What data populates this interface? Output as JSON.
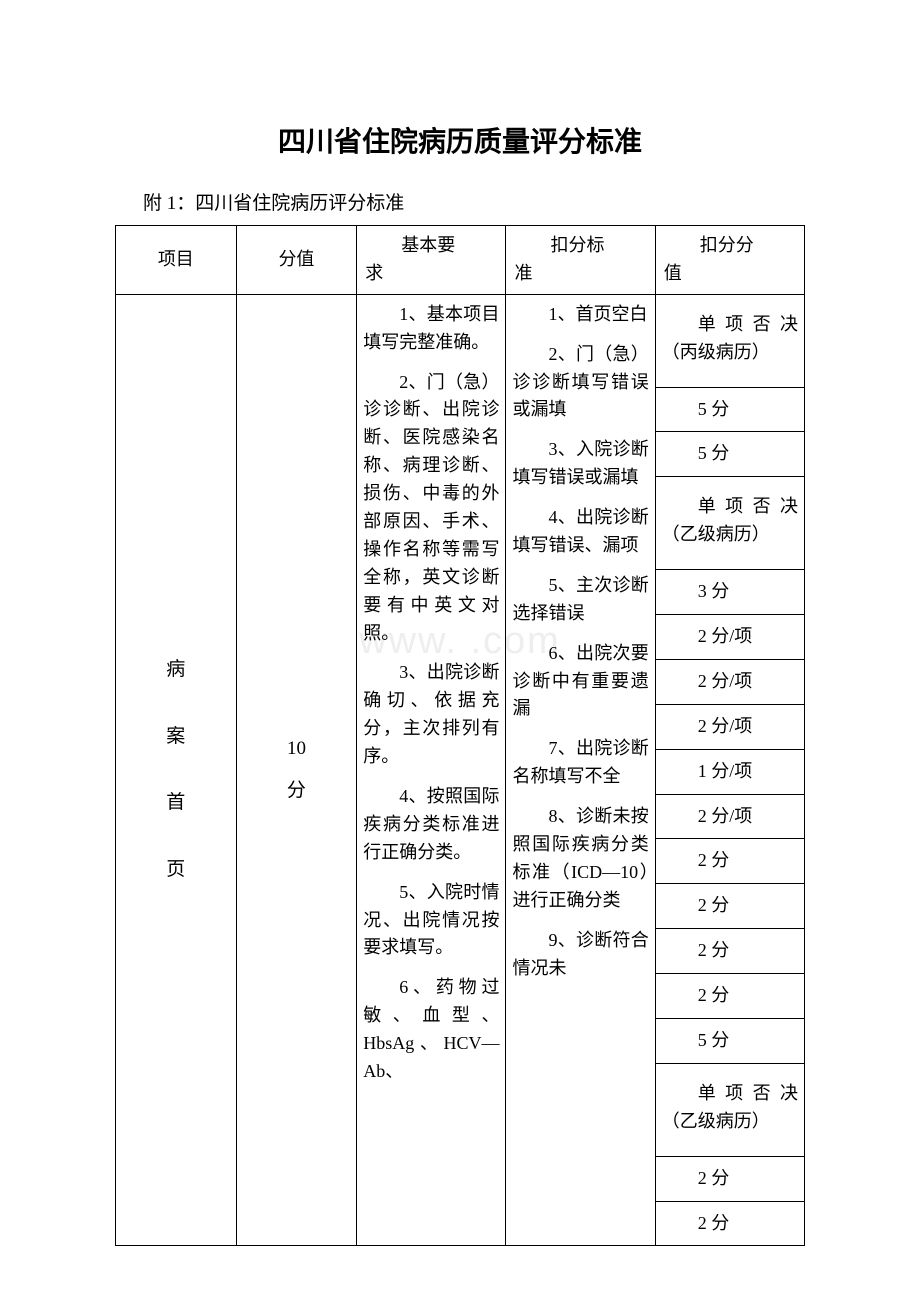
{
  "page": {
    "title": "四川省住院病历质量评分标准",
    "subtitle": "附 1：四川省住院病历评分标准",
    "watermark": "www. .com"
  },
  "table": {
    "headers": {
      "col1": "项目",
      "col2": "分值",
      "col3_line1": "基本要",
      "col3_line2": "求",
      "col4_line1": "扣分标",
      "col4_line2": "准",
      "col5_line1": "扣分分",
      "col5_line2": "值"
    },
    "row": {
      "col1_c1": "病",
      "col1_c2": "案",
      "col1_c3": "首",
      "col1_c4": "页",
      "col2_l1": "10",
      "col2_l2": "分",
      "requirements": {
        "p1": "1、基本项目填写完整准确。",
        "p2": "2、门（急）诊诊断、出院诊断、医院感染名称、病理诊断、损伤、中毒的外部原因、手术、操作名称等需写全称，英文诊断要有中英文对照。",
        "p3": "3、出院诊断确切、依据充分，主次排列有序。",
        "p4": "4、按照国际疾病分类标准进行正确分类。",
        "p5": "5、入院时情况、出院情况按要求填写。",
        "p6": "6、药物过敏、血型、HbsAg、HCV—Ab、"
      },
      "criteria": {
        "p1": "1、首页空白",
        "p2": "2、门（急）诊诊断填写错误或漏填",
        "p3": "3、入院诊断填写错误或漏填",
        "p4": "4、出院诊断填写错误、漏项",
        "p5": "5、主次诊断选择错误",
        "p6": "6、出院次要诊断中有重要遗漏",
        "p7": "7、出院诊断名称填写不全",
        "p8": "8、诊断未按照国际疾病分类标准（ICD—10）进行正确分类",
        "p9": "9、诊断符合情况未"
      },
      "deductions": {
        "d1": "单项否决（丙级病历）",
        "d2": "5 分",
        "d3": "5 分",
        "d4": "单项否决（乙级病历）",
        "d5": "3 分",
        "d6": "2 分/项",
        "d7": "2 分/项",
        "d8": "2 分/项",
        "d9": "1 分/项",
        "d10": "2 分/项",
        "d11": "2 分",
        "d12": "2 分",
        "d13": "2 分",
        "d14": "2 分",
        "d15": "5 分",
        "d16": "单项否决（乙级病历）",
        "d17": "2 分",
        "d18": "2 分"
      }
    }
  },
  "style": {
    "text_color": "#000000",
    "background_color": "#ffffff",
    "border_color": "#000000",
    "watermark_color": "#eeeeee",
    "title_fontsize": 28,
    "body_fontsize": 18
  }
}
